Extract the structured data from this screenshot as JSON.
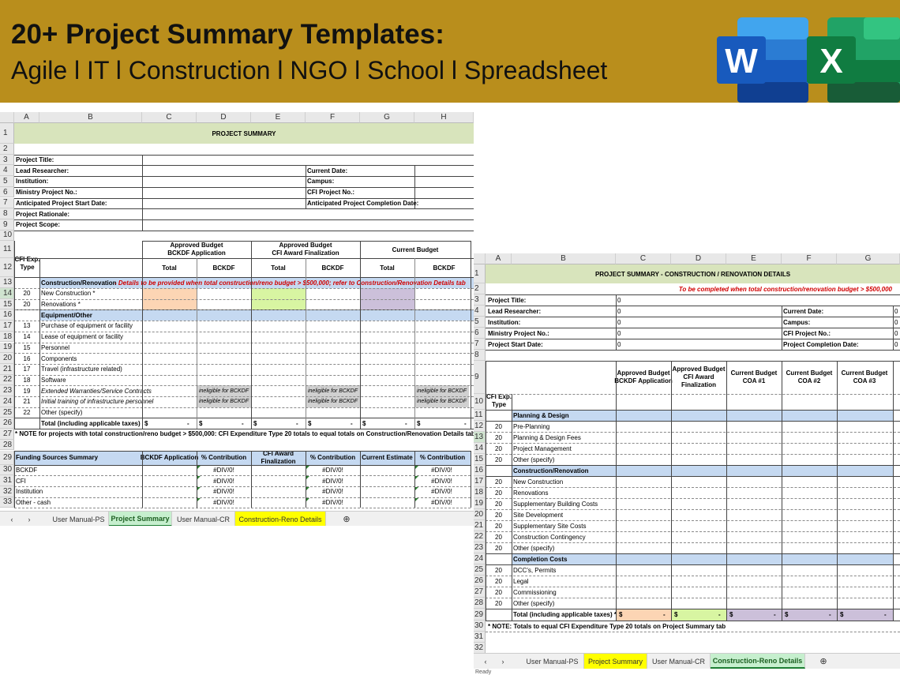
{
  "banner": {
    "title": "20+ Project Summary Templates:",
    "subtitle": "Agile l IT l Construction l NGO l School l Spreadsheet",
    "word_icon": "W",
    "excel_icon": "X"
  },
  "colors": {
    "banner": "#b98e1c",
    "title_band": "#d8e4bc",
    "section_band": "#c5d9f1",
    "orange": "#fcd5b4",
    "green": "#d8f5a2",
    "purple": "#ccc0da",
    "active_tab_yellow": "#ffff00",
    "active_tab_green": "#c6efce"
  },
  "sheet1": {
    "columns": [
      "A",
      "B",
      "C",
      "D",
      "E",
      "F",
      "G",
      "H"
    ],
    "rows": [
      "1",
      "2",
      "3",
      "4",
      "5",
      "6",
      "7",
      "8",
      "9",
      "10",
      "11",
      "12",
      "13",
      "14",
      "15",
      "16",
      "17",
      "18",
      "19",
      "20",
      "21",
      "22",
      "23",
      "24",
      "25",
      "26",
      "27",
      "28",
      "29",
      "30",
      "31",
      "32",
      "33"
    ],
    "title": "PROJECT SUMMARY",
    "info_left": [
      "Project Title:",
      "Lead Researcher:",
      "Institution:",
      "Ministry Project No.:",
      "Anticipated Project Start Date:",
      "Project Rationale:",
      "Project Scope:"
    ],
    "info_right": [
      "Current Date:",
      "Campus:",
      "CFI Project No.:",
      "Anticipated Project Completion Date:"
    ],
    "budget_groups": [
      "Approved Budget\nBCKDF Application",
      "Approved Budget\nCFI Award Finalization",
      "Current Budget"
    ],
    "sub_headers": [
      "Total",
      "BCKDF",
      "Total",
      "BCKDF",
      "Total",
      "BCKDF"
    ],
    "exp_type_header": "CFI Exp.\nType",
    "section_construction": "Construction/Renovation",
    "construction_note": " - Details to be provided when total construction/reno budget > $500,000; refer to Construction/Renovation Details tab",
    "construction_rows": [
      {
        "type": "20",
        "label": "New Construction *"
      },
      {
        "type": "20",
        "label": "Renovations *"
      }
    ],
    "section_equipment": "Equipment/Other",
    "equipment_rows": [
      {
        "type": "13",
        "label": "Purchase of equipment or facility"
      },
      {
        "type": "14",
        "label": "Lease of equipment or facility"
      },
      {
        "type": "15",
        "label": "Personnel"
      },
      {
        "type": "16",
        "label": "Components"
      },
      {
        "type": "17",
        "label": "Travel (infrastructure related)"
      },
      {
        "type": "18",
        "label": "Software"
      },
      {
        "type": "19",
        "label": "Extended Warranties/Service Contracts"
      },
      {
        "type": "21",
        "label": "Initial training of infrastructure personnel"
      },
      {
        "type": "22",
        "label": "Other (specify)"
      }
    ],
    "ineligible": "ineligible for BCKDF",
    "total_label": "Total (including applicable taxes)",
    "dollar": "$",
    "dash": "-",
    "note": "* NOTE for projects with total construction/reno budget > $500,000: CFI Expenditure Type 20 totals to equal totals on Construction/Renovation Details tab",
    "funding_headers": [
      "Funding Sources Summary",
      "BCKDF Application",
      "% Contribution",
      "CFI Award\nFinalization",
      "% Contribution",
      "Current Estimate",
      "% Contribution"
    ],
    "funding_rows": [
      "BCKDF",
      "CFI",
      "Institution",
      "Other - cash"
    ],
    "div0": "#DIV/0!",
    "tabs": [
      "User Manual-PS",
      "Project Summary",
      "User Manual-CR",
      "Construction-Reno Details"
    ],
    "nav": [
      "‹",
      "›"
    ],
    "add_tab": "⊕"
  },
  "sheet2": {
    "columns": [
      "A",
      "B",
      "C",
      "D",
      "E",
      "F",
      "G"
    ],
    "rows": [
      "1",
      "2",
      "3",
      "4",
      "5",
      "6",
      "7",
      "8",
      "9",
      "10",
      "11",
      "12",
      "13",
      "14",
      "15",
      "16",
      "17",
      "18",
      "19",
      "20",
      "21",
      "22",
      "23",
      "24",
      "25",
      "26",
      "27",
      "28",
      "29",
      "30",
      "31",
      "32"
    ],
    "title": "PROJECT SUMMARY - CONSTRUCTION / RENOVATION DETAILS",
    "subtitle": "To be completed when total construction/renovation budget > $500,000",
    "info_left": [
      "Project Title:",
      "Lead Researcher:",
      "Institution:",
      "Ministry Project No.:",
      "Project Start Date:"
    ],
    "info_zero": "0",
    "info_right": [
      "Current Date:",
      "Campus:",
      "CFI Project No.:",
      "Project Completion Date:"
    ],
    "budget_headers": [
      "Approved Budget\nBCKDF Application",
      "Approved Budget\nCFI Award\nFinalization",
      "Current Budget\nCOA #1",
      "Current Budget\nCOA #2",
      "Current Budget\nCOA #3"
    ],
    "exp_type_header": "CFI Exp.\nType",
    "sections": [
      {
        "name": "Planning & Design",
        "rows": [
          {
            "type": "20",
            "label": "Pre-Planning"
          },
          {
            "type": "20",
            "label": "Planning & Design Fees"
          },
          {
            "type": "20",
            "label": "Project Management"
          },
          {
            "type": "20",
            "label": "Other (specify)"
          }
        ]
      },
      {
        "name": "Construction/Renovation",
        "rows": [
          {
            "type": "20",
            "label": "New Construction"
          },
          {
            "type": "20",
            "label": "Renovations"
          },
          {
            "type": "20",
            "label": "Supplementary Building Costs"
          },
          {
            "type": "20",
            "label": "Site Development"
          },
          {
            "type": "20",
            "label": "Supplementary Site Costs"
          },
          {
            "type": "20",
            "label": "Construction Contingency"
          },
          {
            "type": "20",
            "label": "Other (specify)"
          }
        ]
      },
      {
        "name": "Completion Costs",
        "rows": [
          {
            "type": "20",
            "label": "DCC's, Permits"
          },
          {
            "type": "20",
            "label": "Legal"
          },
          {
            "type": "20",
            "label": "Commissioning"
          },
          {
            "type": "20",
            "label": "Other (specify)"
          }
        ]
      }
    ],
    "total_label": "Total (including applicable taxes) *",
    "dollar": "$",
    "dash": "-",
    "note": "* NOTE: Totals to equal CFI Expenditure Type 20 totals on Project Summary tab",
    "tabs": [
      "User Manual-PS",
      "Project Summary",
      "User Manual-CR",
      "Construction-Reno Details"
    ],
    "nav": [
      "‹",
      "›"
    ],
    "add_tab": "⊕",
    "status": "Ready"
  }
}
